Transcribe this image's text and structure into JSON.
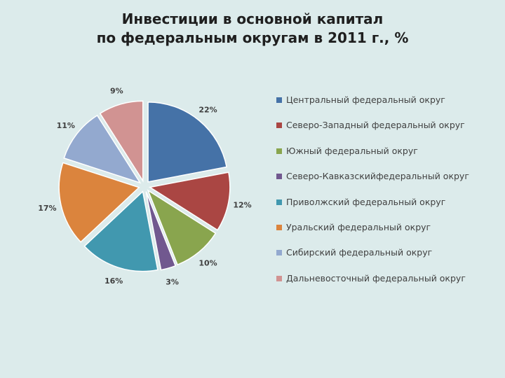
{
  "title": {
    "line1": "Инвестиции в основной капитал",
    "line2": "по федеральным округам в 2011 г., %"
  },
  "chart_data": {
    "type": "pie",
    "title": "Инвестиции в основной капитал по федеральным округам в 2011 г., %",
    "exploded": true,
    "legend_position": "right",
    "slices": [
      {
        "name": "Центральный федеральный округ",
        "value": 22,
        "label": "22%",
        "color": "#4572a7"
      },
      {
        "name": "Северо-Западный федеральный округ",
        "value": 12,
        "label": "12%",
        "color": "#aa4643"
      },
      {
        "name": "Южный федеральный округ",
        "value": 10,
        "label": "10%",
        "color": "#89a54e"
      },
      {
        "name": "Северо-Кавказскийфедеральный  округ",
        "value": 3,
        "label": "3%",
        "color": "#71588f"
      },
      {
        "name": "Приволжский федеральный округ",
        "value": 16,
        "label": "16%",
        "color": "#4198af"
      },
      {
        "name": "Уральский федеральный округ",
        "value": 17,
        "label": "17%",
        "color": "#db843d"
      },
      {
        "name": "Сибирский федеральный округ",
        "value": 11,
        "label": "11%",
        "color": "#93a9cf"
      },
      {
        "name": "Дальневосточный федеральный округ",
        "value": 9,
        "label": "9%",
        "color": "#d19392"
      }
    ]
  }
}
